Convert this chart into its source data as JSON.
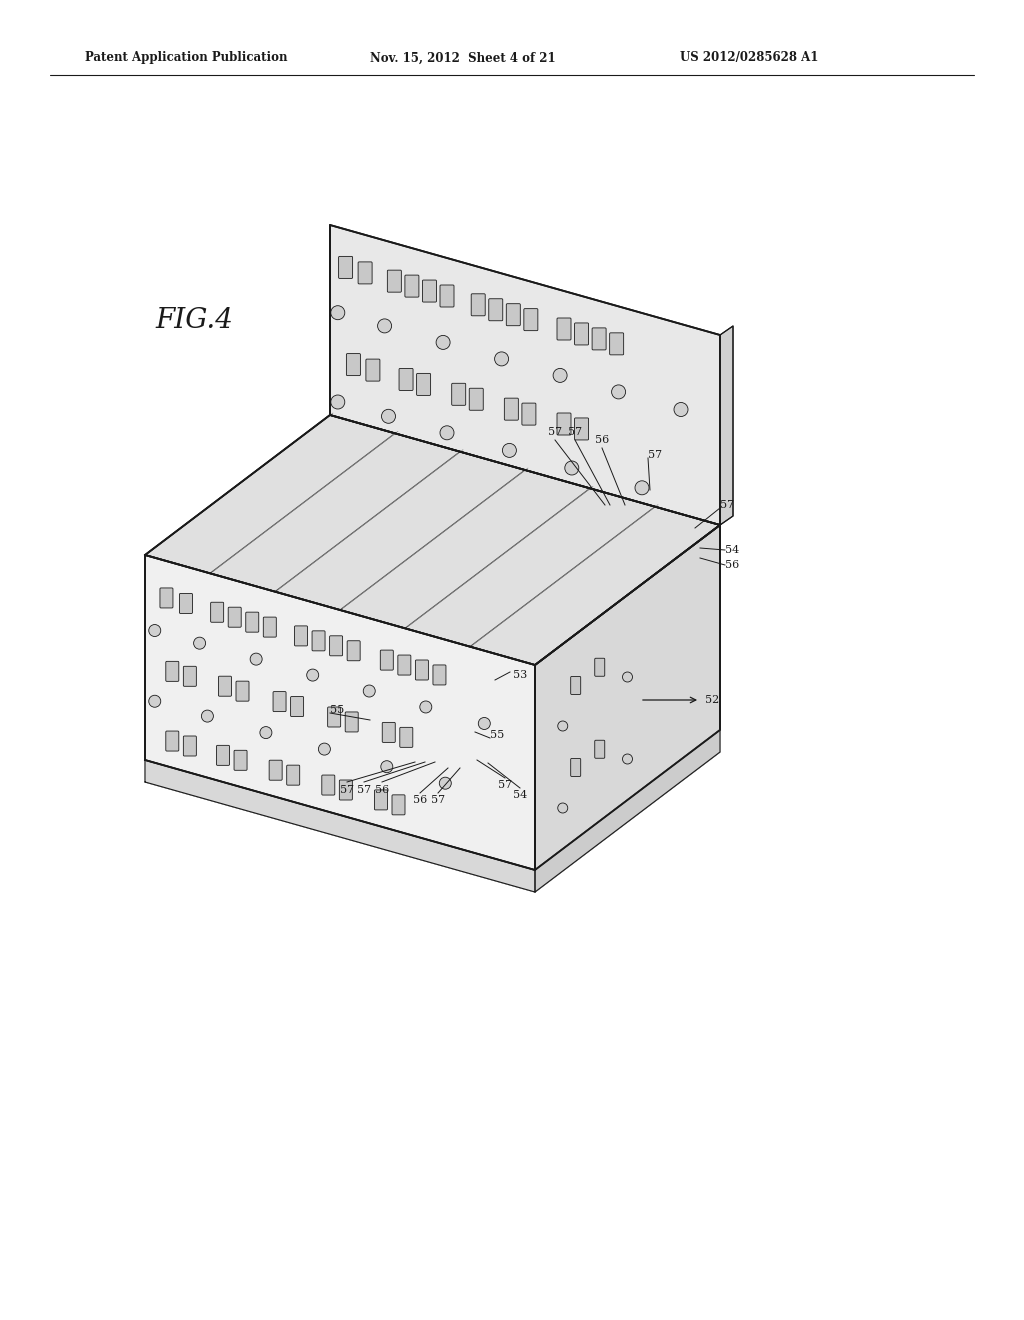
{
  "background_color": "#ffffff",
  "header_left": "Patent Application Publication",
  "header_center": "Nov. 15, 2012  Sheet 4 of 21",
  "header_right": "US 2012/0285628 A1",
  "figure_label": "FIG.4",
  "line_color": "#1a1a1a",
  "face_color_front": "#f0f0f0",
  "face_color_top": "#e0e0e0",
  "face_color_right": "#d8d8d8",
  "face_color_back_panel": "#e8e8e8",
  "face_color_back_strip": "#d0d0d0",
  "slot_face": "#c8c8c8",
  "slot_edge": "#1a1a1a",
  "circle_face": "#d0d0d0"
}
